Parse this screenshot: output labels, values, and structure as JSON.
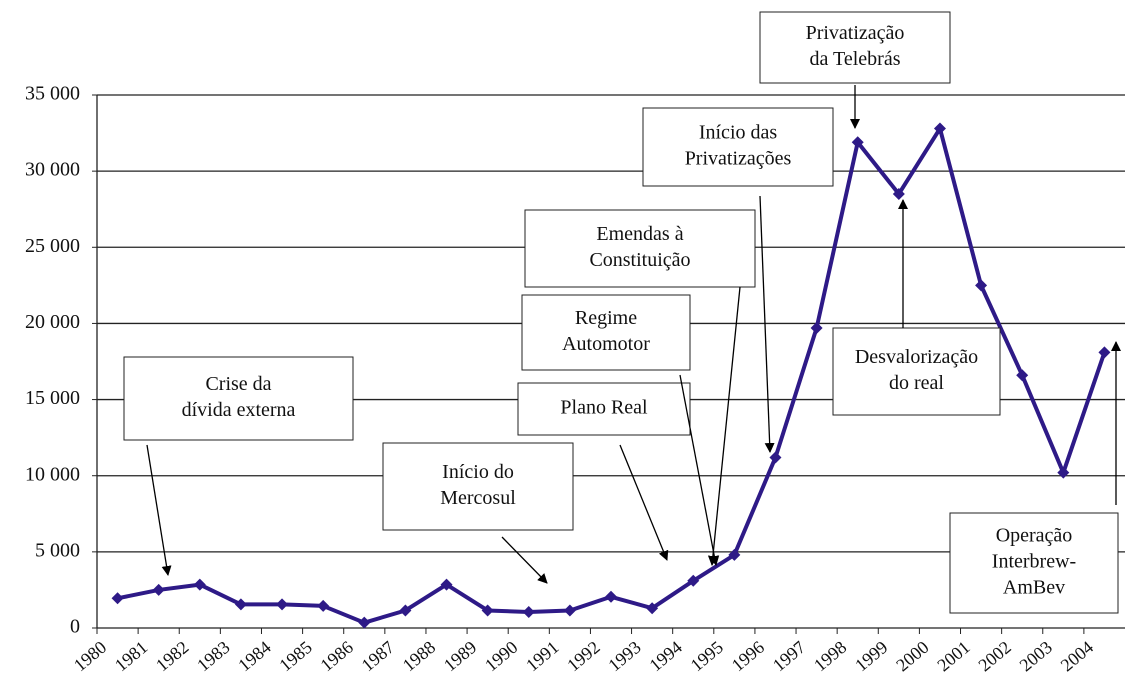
{
  "chart_data": {
    "type": "line",
    "categories": [
      "1980",
      "1981",
      "1982",
      "1983",
      "1984",
      "1985",
      "1986",
      "1987",
      "1988",
      "1989",
      "1990",
      "1991",
      "1992",
      "1993",
      "1994",
      "1995",
      "1996",
      "1997",
      "1998",
      "1999",
      "2000",
      "2001",
      "2002",
      "2003",
      "2004"
    ],
    "values": [
      1950,
      2500,
      2850,
      1550,
      1550,
      1450,
      350,
      1150,
      2850,
      1150,
      1050,
      1150,
      2050,
      1300,
      3100,
      4800,
      11200,
      19700,
      31900,
      28500,
      32800,
      22500,
      16600,
      10200,
      18100
    ],
    "color": "#2e1a87",
    "ylim": [
      0,
      35000
    ],
    "yticks": [
      0,
      {
        "value": 5000,
        "label": "5 000"
      },
      {
        "value": 10000,
        "label": "10 000"
      },
      {
        "value": 15000,
        "label": "15 000"
      },
      {
        "value": 20000,
        "label": "20 000"
      },
      {
        "value": 25000,
        "label": "25 000"
      },
      {
        "value": 30000,
        "label": "30 000"
      },
      {
        "value": 35000,
        "label": "35 000"
      }
    ],
    "grid": true,
    "annotations": [
      {
        "lines": [
          "Crise da",
          "dívida externa"
        ]
      },
      {
        "lines": [
          "Início do",
          "Mercosul"
        ]
      },
      {
        "lines": [
          "Plano Real"
        ]
      },
      {
        "lines": [
          "Regime",
          "Automotor"
        ]
      },
      {
        "lines": [
          "Emendas à",
          "Constituição"
        ]
      },
      {
        "lines": [
          "Início das",
          "Privatizações"
        ]
      },
      {
        "lines": [
          "Privatização",
          "da Telebrás"
        ]
      },
      {
        "lines": [
          "Desvalorização",
          "do real"
        ]
      },
      {
        "lines": [
          "Operação",
          "Interbrew-",
          "AmBev"
        ]
      }
    ]
  }
}
